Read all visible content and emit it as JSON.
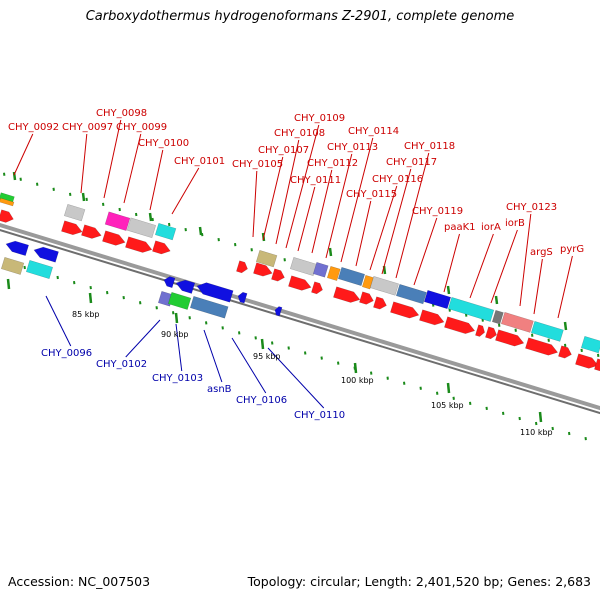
{
  "title": "Carboxydothermus hydrogenoformans Z-2901, complete genome",
  "footer": {
    "accession": "Accession: NC_007503",
    "summary": "Topology: circular; Length: 2,401,520 bp; Genes: 2,683"
  },
  "colors": {
    "plus_label": "#cc0000",
    "minus_label": "#0000aa",
    "backbone": "#999999",
    "tick": "#1a8a1a"
  },
  "scale": {
    "unit": "kbp",
    "labels": [
      "85 kbp",
      "90 kbp",
      "95 kbp",
      "100 kbp",
      "105 kbp",
      "110 kbp"
    ]
  },
  "labels_plus": [
    "CHY_0092",
    "CHY_0097",
    "CHY_0098",
    "CHY_0099",
    "CHY_0100",
    "CHY_0101",
    "CHY_0105",
    "CHY_0107",
    "CHY_0108",
    "CHY_0109",
    "CHY_0111",
    "CHY_0112",
    "CHY_0113",
    "CHY_0114",
    "CHY_0115",
    "CHY_0116",
    "CHY_0117",
    "CHY_0118",
    "CHY_0119",
    "paaK1",
    "iorA",
    "iorB",
    "CHY_0123",
    "argS",
    "pyrG"
  ],
  "labels_minus": [
    "CHY_0096",
    "CHY_0102",
    "CHY_0103",
    "asnB",
    "CHY_0106",
    "CHY_0110"
  ]
}
